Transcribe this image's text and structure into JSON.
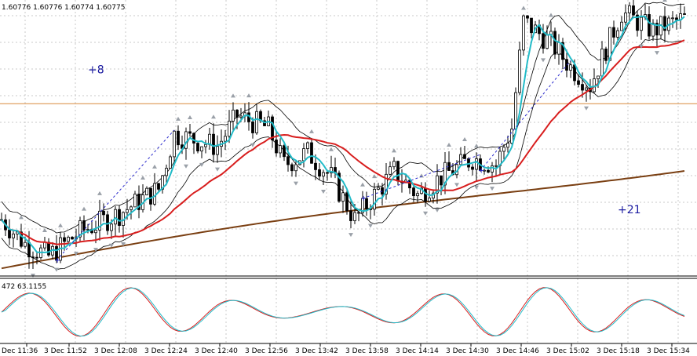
{
  "header": {
    "ohlc_text": "1.60776 1.60776 1.60774 1.60775"
  },
  "indicator": {
    "values_text": "472 63.1155"
  },
  "annotations": [
    {
      "text": "+8",
      "x_index": 22,
      "price": 1.6118
    },
    {
      "text": "+21",
      "x_index": 157,
      "price": 1.6072
    }
  ],
  "chart_data": {
    "type": "candlestick",
    "x_labels": [
      "Dec 11:36",
      "3 Dec 11:52",
      "3 Dec 12:08",
      "3 Dec 12:24",
      "3 Dec 12:40",
      "3 Dec 12:56",
      "3 Dec 13:42",
      "3 Dec 13:58",
      "3 Dec 14:14",
      "3 Dec 14:30",
      "3 Dec 14:46",
      "3 Dec 15:02",
      "3 Dec 15:18",
      "3 Dec 15:34"
    ],
    "y_range": [
      1.6052,
      1.6142
    ],
    "horizontal_line": 1.6108,
    "colors": {
      "bull": "#ffffff",
      "bear": "#000000",
      "outline": "#000000",
      "fast_ma": "#22bbc8",
      "slow_ma": "#d81e1e",
      "long_ma": "#7a3f12",
      "hline": "#d98a3c",
      "dotted": "#2a2acc",
      "osc_a": "#d81e1e",
      "osc_b": "#22bbc8",
      "fractal": "#9aa0a8"
    },
    "oscillator_range": [
      0,
      100
    ]
  }
}
